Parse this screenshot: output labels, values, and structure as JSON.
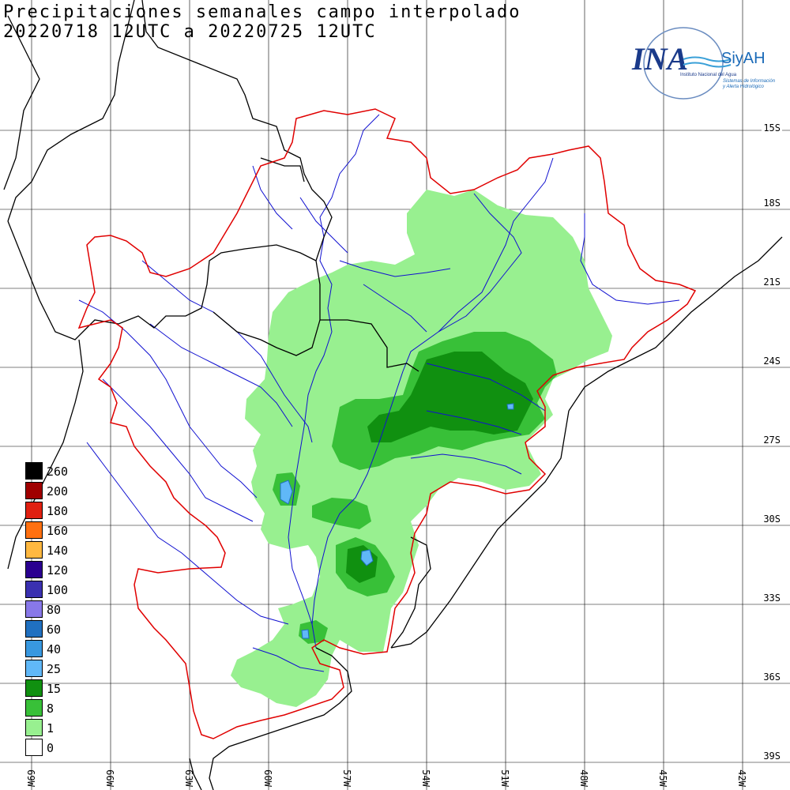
{
  "title": {
    "line1": "Precipitaciones semanales campo interpolado",
    "line2": "20220718 12UTC a 20220725 12UTC"
  },
  "logo": {
    "brand": "INA",
    "sub": "SiyAH",
    "org": "Instituto Nacional del Agua",
    "desc1": "Sistemas de Información",
    "desc2": "y Alerta Hidrológico"
  },
  "latitudes": [
    "15S",
    "18S",
    "21S",
    "24S",
    "27S",
    "30S",
    "33S",
    "36S",
    "39S"
  ],
  "longitudes": [
    "69W",
    "66W",
    "63W",
    "60W",
    "57W",
    "54W",
    "51W",
    "48W",
    "45W",
    "42W"
  ],
  "legend": [
    {
      "label": "260",
      "color": "#000000"
    },
    {
      "label": "200",
      "color": "#a00000"
    },
    {
      "label": "180",
      "color": "#e02010"
    },
    {
      "label": "160",
      "color": "#ff7010"
    },
    {
      "label": "140",
      "color": "#ffb840"
    },
    {
      "label": "120",
      "color": "#2a0090"
    },
    {
      "label": "100",
      "color": "#3a30b0"
    },
    {
      "label": "80",
      "color": "#8878e8"
    },
    {
      "label": "60",
      "color": "#2070c0"
    },
    {
      "label": "40",
      "color": "#3898e0"
    },
    {
      "label": "25",
      "color": "#60b8f8"
    },
    {
      "label": "15",
      "color": "#109010"
    },
    {
      "label": "8",
      "color": "#38c038"
    },
    {
      "label": "1",
      "color": "#98f090"
    },
    {
      "label": "0",
      "color": "#ffffff"
    }
  ],
  "colors": {
    "basin_outline": "#e00000",
    "rivers": "#1010d0",
    "borders": "#000000",
    "grid": "#000000"
  }
}
